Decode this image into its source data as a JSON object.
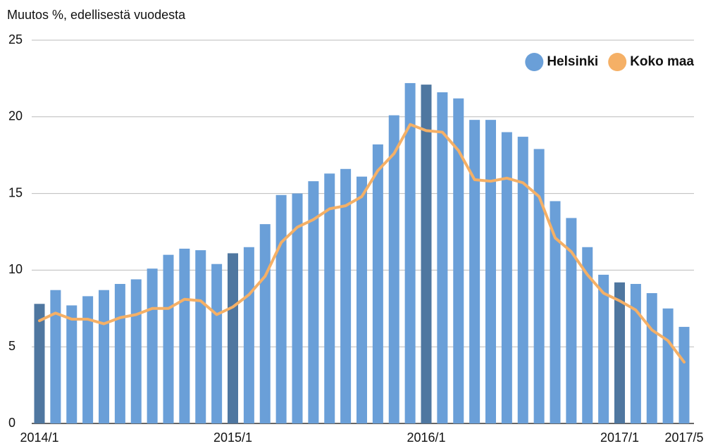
{
  "chart_data": {
    "type": "bar_line",
    "title": "Muutos %, edellisestä vuodesta",
    "categories": [
      "2014/1",
      null,
      null,
      null,
      null,
      null,
      null,
      null,
      null,
      null,
      null,
      null,
      "2015/1",
      null,
      null,
      null,
      null,
      null,
      null,
      null,
      null,
      null,
      null,
      null,
      "2016/1",
      null,
      null,
      null,
      null,
      null,
      null,
      null,
      null,
      null,
      null,
      null,
      "2017/1",
      null,
      null,
      null,
      "2017/5"
    ],
    "series": [
      {
        "name": "Helsinki",
        "type": "bar",
        "color": "#6a9fd8",
        "colors": [
          "#4f77a0",
          "#6a9fd8",
          "#6a9fd8",
          "#6a9fd8",
          "#6a9fd8",
          "#6a9fd8",
          "#6a9fd8",
          "#6a9fd8",
          "#6a9fd8",
          "#6a9fd8",
          "#6a9fd8",
          "#6a9fd8",
          "#4f77a0",
          "#6a9fd8",
          "#6a9fd8",
          "#6a9fd8",
          "#6a9fd8",
          "#6a9fd8",
          "#6a9fd8",
          "#6a9fd8",
          "#6a9fd8",
          "#6a9fd8",
          "#6a9fd8",
          "#6a9fd8",
          "#4f77a0",
          "#6a9fd8",
          "#6a9fd8",
          "#6a9fd8",
          "#6a9fd8",
          "#6a9fd8",
          "#6a9fd8",
          "#6a9fd8",
          "#6a9fd8",
          "#6a9fd8",
          "#6a9fd8",
          "#6a9fd8",
          "#4f77a0",
          "#6a9fd8",
          "#6a9fd8",
          "#6a9fd8",
          "#6a9fd8"
        ],
        "values": [
          7.8,
          8.7,
          7.7,
          8.3,
          8.7,
          9.1,
          9.4,
          10.1,
          11.0,
          11.4,
          11.3,
          10.4,
          11.1,
          11.5,
          13.0,
          14.9,
          15.0,
          15.8,
          16.3,
          16.6,
          16.1,
          18.2,
          20.1,
          22.2,
          22.1,
          21.6,
          21.2,
          19.8,
          19.8,
          19.0,
          18.7,
          17.9,
          14.5,
          13.4,
          11.5,
          9.7,
          9.2,
          9.1,
          8.5,
          7.5,
          6.3
        ]
      },
      {
        "name": "Koko maa",
        "type": "line",
        "color": "#f5b066",
        "values": [
          6.7,
          7.2,
          6.8,
          6.8,
          6.5,
          6.9,
          7.1,
          7.5,
          7.5,
          8.1,
          8.0,
          7.1,
          7.6,
          8.4,
          9.6,
          11.8,
          12.8,
          13.3,
          14.0,
          14.2,
          14.8,
          16.5,
          17.6,
          19.5,
          19.1,
          19.0,
          17.8,
          15.9,
          15.8,
          16.0,
          15.7,
          14.8,
          12.1,
          11.2,
          9.7,
          8.5,
          8.0,
          7.4,
          6.1,
          5.4,
          4.0
        ]
      }
    ],
    "ylim": [
      0,
      25
    ],
    "yticks": [
      0,
      5,
      10,
      15,
      20,
      25
    ],
    "grid": true,
    "legend": "top-right"
  }
}
